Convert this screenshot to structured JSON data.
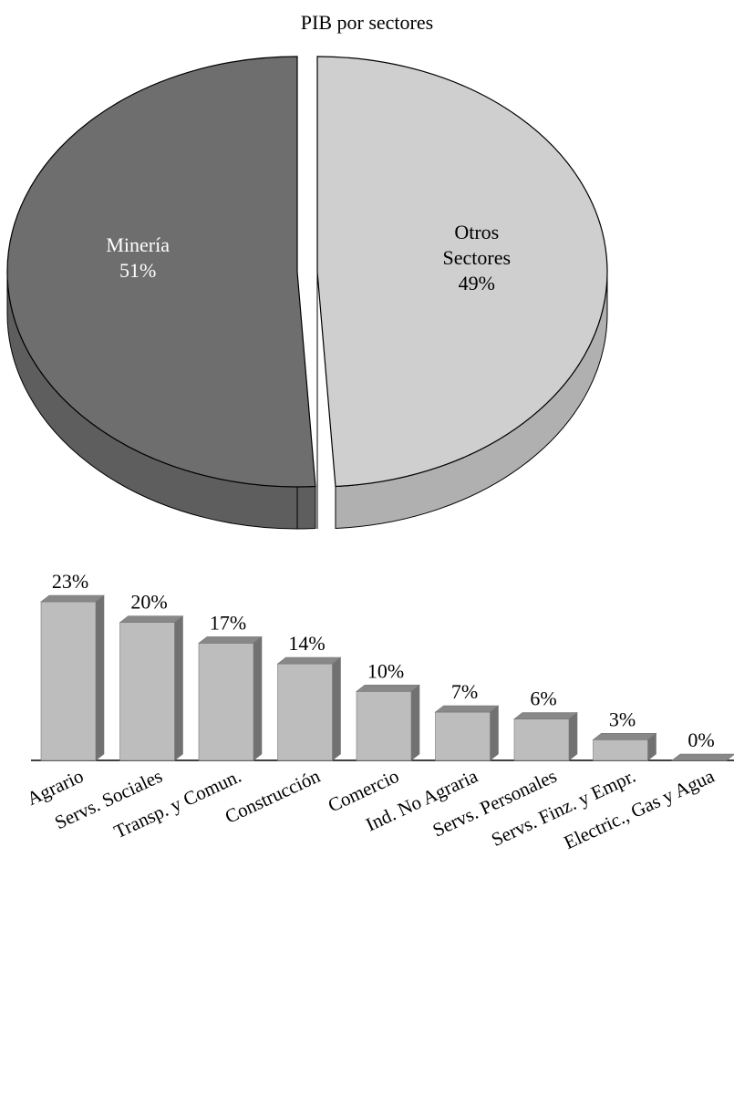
{
  "chart_data": [
    {
      "type": "pie",
      "title": "PIB por sectores",
      "slices": [
        {
          "label_lines": [
            "Minería"
          ],
          "value": 51,
          "value_label": "51%",
          "color": "#6e6e6e"
        },
        {
          "label_lines": [
            "Otros",
            "Sectores"
          ],
          "value": 49,
          "value_label": "49%",
          "color": "#cfcfcf"
        }
      ],
      "style": "3d-exploded"
    },
    {
      "type": "bar",
      "style": "3d",
      "categories": [
        "Agrario",
        "Servs. Sociales",
        "Transp. y Comun.",
        "Construcción",
        "Comercio",
        "Ind. No Agraria",
        "Servs. Personales",
        "Servs. Finz. y Empr.",
        "Electric., Gas y Agua"
      ],
      "values": [
        23,
        20,
        17,
        14,
        10,
        7,
        6,
        3,
        0
      ],
      "value_labels": [
        "23%",
        "20%",
        "17%",
        "14%",
        "10%",
        "7%",
        "6%",
        "3%",
        "0%"
      ],
      "ylim": [
        0,
        23
      ],
      "bar_color": "#bdbdbd",
      "grid": false,
      "legend": "none"
    }
  ]
}
